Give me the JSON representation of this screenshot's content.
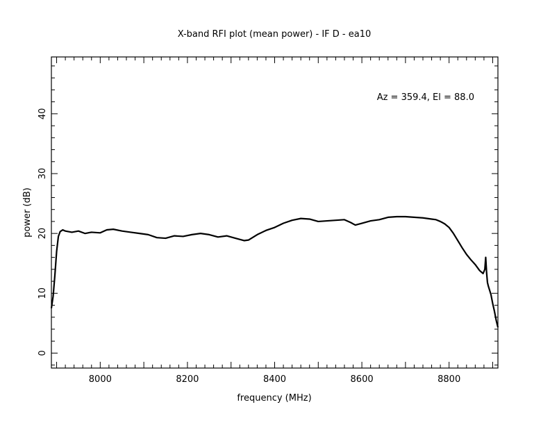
{
  "chart_data": {
    "type": "line",
    "title": "X-band RFI plot (mean power) - IF D - ea10",
    "xlabel": "frequency (MHz)",
    "ylabel": "power (dB)",
    "annotation": "Az = 359.4, El = 88.0",
    "xlim": [
      7888,
      8912
    ],
    "ylim": [
      -2.5,
      49.5
    ],
    "x_major_ticks": [
      8000,
      8200,
      8400,
      8600,
      8800
    ],
    "x_tick_labels": [
      "8000",
      "8200",
      "8400",
      "8600",
      "8800"
    ],
    "y_major_ticks": [
      0,
      10,
      20,
      30,
      40
    ],
    "y_tick_labels": [
      "0",
      "10",
      "20",
      "30",
      "40"
    ],
    "grid": false,
    "line_color": "#000000",
    "series": [
      {
        "x": [
          7888,
          7892,
          7896,
          7900,
          7904,
          7908,
          7914,
          7920,
          7935,
          7950,
          7965,
          7980,
          8000,
          8015,
          8030,
          8050,
          8070,
          8090,
          8110,
          8130,
          8150,
          8170,
          8190,
          8210,
          8230,
          8250,
          8270,
          8290,
          8310,
          8330,
          8340,
          8360,
          8380,
          8400,
          8420,
          8440,
          8460,
          8480,
          8500,
          8520,
          8540,
          8560,
          8575,
          8585,
          8600,
          8620,
          8640,
          8660,
          8680,
          8700,
          8720,
          8740,
          8760,
          8770,
          8780,
          8790,
          8800,
          8810,
          8820,
          8830,
          8840,
          8850,
          8860,
          8870,
          8878,
          8882,
          8884,
          8886,
          8888,
          8890,
          8896,
          8900,
          8904,
          8908,
          8912
        ],
        "y": [
          7.5,
          9.5,
          13.0,
          17.0,
          19.5,
          20.3,
          20.6,
          20.4,
          20.2,
          20.4,
          20.0,
          20.2,
          20.1,
          20.6,
          20.7,
          20.4,
          20.2,
          20.0,
          19.8,
          19.3,
          19.2,
          19.6,
          19.5,
          19.8,
          20.0,
          19.8,
          19.4,
          19.6,
          19.2,
          18.8,
          18.9,
          19.8,
          20.5,
          21.0,
          21.7,
          22.2,
          22.5,
          22.4,
          22.0,
          22.1,
          22.2,
          22.3,
          21.8,
          21.4,
          21.7,
          22.1,
          22.3,
          22.7,
          22.8,
          22.8,
          22.7,
          22.6,
          22.4,
          22.3,
          22.0,
          21.6,
          21.0,
          20.0,
          18.8,
          17.6,
          16.5,
          15.6,
          14.8,
          13.8,
          13.3,
          14.0,
          16.0,
          13.5,
          11.8,
          11.2,
          9.8,
          8.3,
          7.0,
          5.5,
          4.3
        ]
      }
    ]
  }
}
